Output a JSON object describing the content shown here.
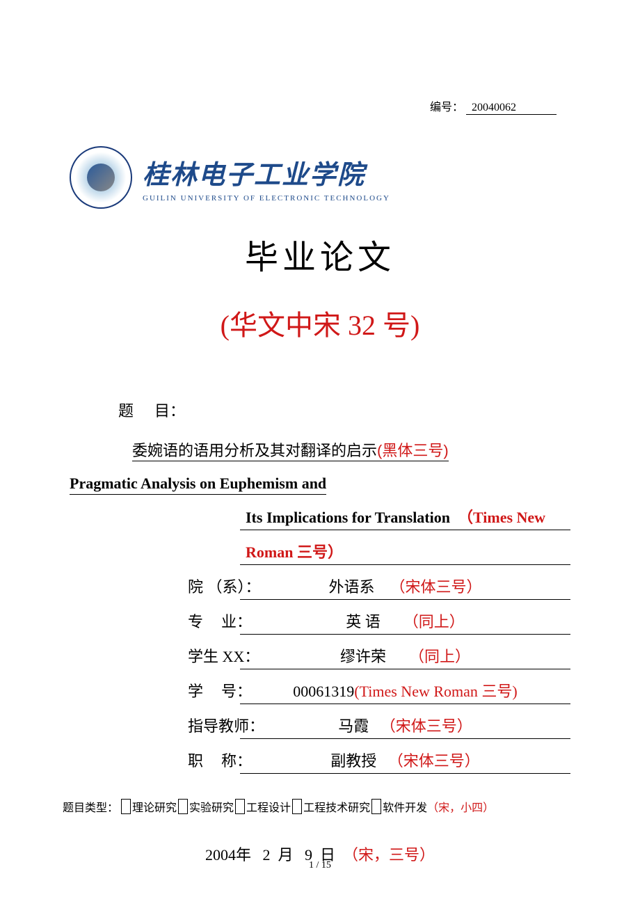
{
  "serial": {
    "label": "编号：",
    "value": "20040062"
  },
  "university": {
    "name_cn": "桂林电子工业学院",
    "name_en": "GUILIN UNIVERSITY OF ELECTRONIC TECHNOLOGY"
  },
  "main_title": "毕业论文",
  "sub_title": "(华文中宋 32 号)",
  "topic": {
    "label_char1": "题",
    "label_char2": "目：",
    "cn_text": "委婉语的语用分析及其对翻译的启示",
    "cn_note": "(黑体三号)",
    "en_line1": "Pragmatic Analysis on Euphemism and",
    "en_line2": "Its Implications for Translation",
    "en_note_1": "（Times New",
    "en_note_2": "Roman 三号）"
  },
  "fields": {
    "department": {
      "label": "院 （系）：",
      "value": "外语系",
      "note": "（宋体三号）"
    },
    "major": {
      "label_a": "专",
      "label_b": "业：",
      "value": "英 语",
      "note": "（同上）"
    },
    "name": {
      "label": "学生 XX：",
      "value": "缪许荣",
      "note": "（同上）"
    },
    "id": {
      "label_a": "学",
      "label_b": "号：",
      "value": "00061319",
      "note": "(Times New Roman 三号)"
    },
    "teacher": {
      "label": "指导教师：",
      "value": "马霞",
      "note": "（宋体三号）"
    },
    "title": {
      "label_a": "职",
      "label_b": "称：",
      "value": "副教授",
      "note": "（宋体三号）"
    }
  },
  "type_row": {
    "label": "题目类型：",
    "opt1": "理论研究",
    "opt2": "实验研究",
    "opt3": "工程设计",
    "opt4": "工程技术研究",
    "opt5": "软件开发",
    "note": "（宋，小四）"
  },
  "date": {
    "year": "2004",
    "year_unit": "年",
    "month": "2",
    "month_unit": "月",
    "day": "9",
    "day_unit": "日",
    "note": "（宋，三号）"
  },
  "page_num": "1 / 15"
}
